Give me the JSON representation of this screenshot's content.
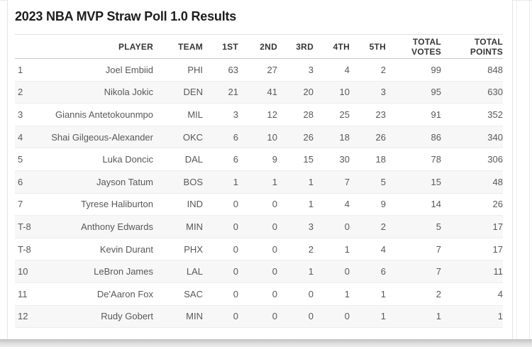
{
  "chart_data": {
    "type": "table",
    "title": "2023 NBA MVP Straw Poll 1.0 Results",
    "columns": [
      {
        "key": "rank",
        "label": ""
      },
      {
        "key": "player",
        "label": "PLAYER"
      },
      {
        "key": "team",
        "label": "TEAM"
      },
      {
        "key": "first-place",
        "label": "1ST"
      },
      {
        "key": "second-place",
        "label": "2ND"
      },
      {
        "key": "third-place",
        "label": "3RD"
      },
      {
        "key": "fourth-place",
        "label": "4TH"
      },
      {
        "key": "fifth-place",
        "label": "5TH"
      },
      {
        "key": "total-votes",
        "label": "TOTAL VOTES"
      },
      {
        "key": "total-points",
        "label": "TOTAL POINTS"
      }
    ],
    "rows": [
      [
        "1",
        "Joel Embiid",
        "PHI",
        "63",
        "27",
        "3",
        "4",
        "2",
        "99",
        "848"
      ],
      [
        "2",
        "Nikola Jokic",
        "DEN",
        "21",
        "41",
        "20",
        "10",
        "3",
        "95",
        "630"
      ],
      [
        "3",
        "Giannis Antetokounmpo",
        "MIL",
        "3",
        "12",
        "28",
        "25",
        "23",
        "91",
        "352"
      ],
      [
        "4",
        "Shai Gilgeous-Alexander",
        "OKC",
        "6",
        "10",
        "26",
        "18",
        "26",
        "86",
        "340"
      ],
      [
        "5",
        "Luka Doncic",
        "DAL",
        "6",
        "9",
        "15",
        "30",
        "18",
        "78",
        "306"
      ],
      [
        "6",
        "Jayson Tatum",
        "BOS",
        "1",
        "1",
        "1",
        "7",
        "5",
        "15",
        "48"
      ],
      [
        "7",
        "Tyrese Haliburton",
        "IND",
        "0",
        "0",
        "1",
        "4",
        "9",
        "14",
        "26"
      ],
      [
        "T-8",
        "Anthony Edwards",
        "MIN",
        "0",
        "0",
        "3",
        "0",
        "2",
        "5",
        "17"
      ],
      [
        "T-8",
        "Kevin Durant",
        "PHX",
        "0",
        "0",
        "2",
        "1",
        "4",
        "7",
        "17"
      ],
      [
        "10",
        "LeBron James",
        "LAL",
        "0",
        "0",
        "1",
        "0",
        "6",
        "7",
        "11"
      ],
      [
        "11",
        "De'Aaron Fox",
        "SAC",
        "0",
        "0",
        "0",
        "1",
        "1",
        "2",
        "4"
      ],
      [
        "12",
        "Rudy Gobert",
        "MIN",
        "0",
        "0",
        "0",
        "0",
        "1",
        "1",
        "1"
      ]
    ],
    "layout": {
      "grid": "horizontal-row-rules",
      "zebra_striping": "even-rows",
      "alignment": {
        "rank": "left",
        "all-other-columns": "right"
      }
    }
  },
  "colors": {
    "title_text": "#1d1d1f",
    "header_text": "#363638",
    "cell_text": "#58585a",
    "row_stripe": "#f7f7f7",
    "row_divider": "#ededed",
    "header_rule": "#c9c9c9",
    "title_rule": "#e0e0e0",
    "card_border": "#e4e4e4",
    "bottom_edge": "#c6c6c6"
  }
}
